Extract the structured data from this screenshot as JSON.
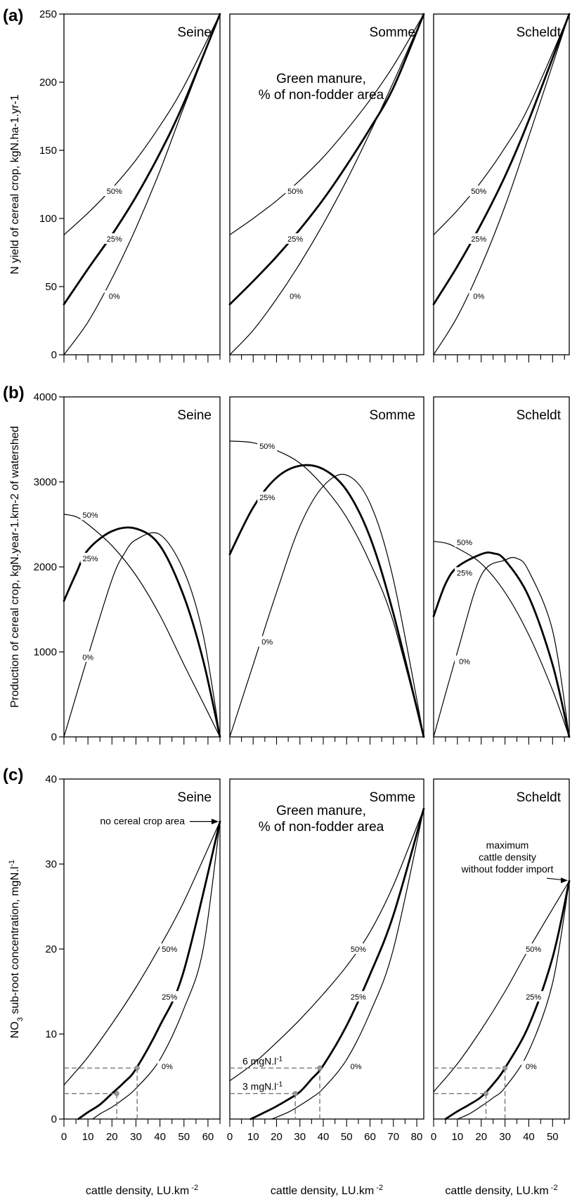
{
  "chart_data": {
    "type": "line",
    "basins": [
      {
        "name": "Seine",
        "x_max": 65,
        "x_ticks": [
          0,
          10,
          20,
          30,
          40,
          50,
          60
        ]
      },
      {
        "name": "Somme",
        "x_max": 83,
        "x_ticks": [
          0,
          10,
          20,
          30,
          40,
          50,
          60,
          70,
          80
        ]
      },
      {
        "name": "Scheldt",
        "x_max": 57,
        "x_ticks": [
          0,
          10,
          20,
          30,
          40,
          50
        ]
      }
    ],
    "xlabel": "cattle density, LU.km",
    "xlabel_sup": "-2",
    "panels": [
      {
        "label": "(a)",
        "ylabel": "N yield of cereal crop, kgN.ha",
        "ylabel_tail": "-1.yr-1",
        "ylim": [
          0,
          250
        ],
        "y_ticks": [
          0,
          50,
          100,
          150,
          200,
          250
        ],
        "annotation": [
          "Green manure,",
          "% of non-fodder area"
        ],
        "basins": [
          {
            "series": [
              {
                "name": "50%",
                "x": [
                  0,
                  10,
                  20,
                  30,
                  40,
                  50,
                  65
                ],
                "y": [
                  88,
                  104,
                  122,
                  143,
                  168,
                  197,
                  250
                ]
              },
              {
                "name": "25%",
                "x": [
                  0,
                  10,
                  20,
                  30,
                  40,
                  50,
                  65
                ],
                "y": [
                  37,
                  63,
                  88,
                  116,
                  148,
                  185,
                  250
                ]
              },
              {
                "name": "0%",
                "x": [
                  0,
                  10,
                  20,
                  30,
                  40,
                  50,
                  65
                ],
                "y": [
                  0,
                  24,
                  56,
                  93,
                  135,
                  182,
                  250
                ]
              }
            ]
          },
          {
            "series": [
              {
                "name": "50%",
                "x": [
                  0,
                  10,
                  20,
                  30,
                  40,
                  50,
                  60,
                  70,
                  83
                ],
                "y": [
                  88,
                  100,
                  113,
                  128,
                  145,
                  165,
                  187,
                  212,
                  250
                ]
              },
              {
                "name": "25%",
                "x": [
                  0,
                  10,
                  20,
                  30,
                  40,
                  50,
                  60,
                  70,
                  83
                ],
                "y": [
                  37,
                  54,
                  72,
                  92,
                  114,
                  139,
                  166,
                  196,
                  250
                ]
              },
              {
                "name": "0%",
                "x": [
                  0,
                  10,
                  20,
                  30,
                  40,
                  50,
                  60,
                  70,
                  83
                ],
                "y": [
                  0,
                  18,
                  41,
                  67,
                  96,
                  128,
                  163,
                  200,
                  250
                ]
              }
            ]
          },
          {
            "series": [
              {
                "name": "50%",
                "x": [
                  0,
                  10,
                  20,
                  30,
                  40,
                  57
                ],
                "y": [
                  88,
                  106,
                  127,
                  152,
                  182,
                  250
                ]
              },
              {
                "name": "25%",
                "x": [
                  0,
                  10,
                  20,
                  30,
                  40,
                  57
                ],
                "y": [
                  37,
                  65,
                  96,
                  131,
                  172,
                  250
                ]
              },
              {
                "name": "0%",
                "x": [
                  0,
                  10,
                  20,
                  30,
                  40,
                  57
                ],
                "y": [
                  0,
                  28,
                  65,
                  109,
                  160,
                  250
                ]
              }
            ]
          }
        ],
        "labels_at": [
          {
            "50%": [
              21,
              120
            ],
            "25%": [
              21,
              85
            ],
            "0%": [
              21,
              43
            ]
          },
          {
            "50%": [
              28,
              120
            ],
            "25%": [
              28,
              85
            ],
            "0%": [
              28,
              43
            ]
          },
          {
            "50%": [
              19,
              120
            ],
            "25%": [
              19,
              85
            ],
            "0%": [
              19,
              43
            ]
          }
        ]
      },
      {
        "label": "(b)",
        "ylabel": "Production of cereal crop, kgN.year",
        "ylabel_tail": "-1.km-2 of watershed",
        "ylim": [
          0,
          4000
        ],
        "y_ticks": [
          0,
          1000,
          2000,
          3000,
          4000
        ],
        "basins": [
          {
            "series": [
              {
                "name": "50%",
                "x": [
                  0,
                  5,
                  10,
                  20,
                  30,
                  40,
                  50,
                  58,
                  65
                ],
                "y": [
                  2620,
                  2590,
                  2500,
                  2250,
                  1900,
                  1430,
                  850,
                  400,
                  0
                ]
              },
              {
                "name": "25%",
                "x": [
                  0,
                  5,
                  10,
                  20,
                  30,
                  40,
                  50,
                  58,
                  65
                ],
                "y": [
                  1600,
                  1920,
                  2200,
                  2420,
                  2450,
                  2250,
                  1650,
                  900,
                  0
                ]
              },
              {
                "name": "0%",
                "x": [
                  0,
                  10,
                  20,
                  25,
                  30,
                  40,
                  50,
                  58,
                  65
                ],
                "y": [
                  0,
                  950,
                  1850,
                  2150,
                  2320,
                  2380,
                  1950,
                  1200,
                  0
                ]
              }
            ]
          },
          {
            "series": [
              {
                "name": "50%",
                "x": [
                  0,
                  10,
                  20,
                  30,
                  40,
                  50,
                  60,
                  70,
                  83
                ],
                "y": [
                  3480,
                  3460,
                  3370,
                  3220,
                  2950,
                  2580,
                  2050,
                  1350,
                  0
                ]
              },
              {
                "name": "25%",
                "x": [
                  0,
                  10,
                  20,
                  30,
                  40,
                  50,
                  60,
                  70,
                  83
                ],
                "y": [
                  2150,
                  2700,
                  3050,
                  3190,
                  3150,
                  2900,
                  2350,
                  1450,
                  0
                ]
              },
              {
                "name": "0%",
                "x": [
                  0,
                  10,
                  20,
                  30,
                  40,
                  50,
                  60,
                  70,
                  83
                ],
                "y": [
                  0,
                  850,
                  1700,
                  2480,
                  2950,
                  3080,
                  2750,
                  1850,
                  0
                ]
              }
            ]
          },
          {
            "series": [
              {
                "name": "50%",
                "x": [
                  0,
                  5,
                  10,
                  20,
                  30,
                  40,
                  50,
                  57
                ],
                "y": [
                  2300,
                  2280,
                  2220,
                  2040,
                  1700,
                  1200,
                  550,
                  0
                ]
              },
              {
                "name": "25%",
                "x": [
                  0,
                  5,
                  10,
                  20,
                  25,
                  30,
                  40,
                  50,
                  57
                ],
                "y": [
                  1420,
                  1800,
                  2000,
                  2150,
                  2160,
                  2080,
                  1650,
                  850,
                  0
                ]
              },
              {
                "name": "0%",
                "x": [
                  0,
                  10,
                  20,
                  30,
                  35,
                  40,
                  50,
                  57
                ],
                "y": [
                  0,
                  1000,
                  1900,
                  2080,
                  2100,
                  1950,
                  1250,
                  0
                ]
              }
            ]
          }
        ],
        "labels_at": [
          {
            "50%": [
              11,
              2610
            ],
            "25%": [
              11,
              2100
            ],
            "0%": [
              10,
              940
            ]
          },
          {
            "50%": [
              16,
              3420
            ],
            "25%": [
              16,
              2820
            ],
            "0%": [
              16,
              1120
            ]
          },
          {
            "50%": [
              13,
              2290
            ],
            "25%": [
              13,
              1930
            ],
            "0%": [
              13,
              890
            ]
          }
        ]
      },
      {
        "label": "(c)",
        "ylabel": "NO",
        "ylabel_sub": "3",
        "ylabel_tail": " sub-root concentration, mgN.l",
        "ylabel_sup": "-1",
        "ylim": [
          0,
          40
        ],
        "y_ticks": [
          0,
          10,
          20,
          30,
          40
        ],
        "annotation": [
          "Green manure,",
          "% of non-fodder area"
        ],
        "endpoint_label": "no cereal crop area",
        "maxdens_label": [
          "maximum",
          "cattle density",
          "without fodder import"
        ],
        "ref_labels": [
          "6 mgN.l",
          "3 mgN.l"
        ],
        "ref_sup": "-1",
        "basins": [
          {
            "series": [
              {
                "name": "50%",
                "x": [
                  0,
                  10,
                  20,
                  30,
                  40,
                  50,
                  65
                ],
                "y": [
                  4,
                  7.3,
                  11.2,
                  15.5,
                  20.3,
                  25.6,
                  35
                ]
              },
              {
                "name": "25%",
                "x": [
                  6,
                  10,
                  15,
                  20,
                  25,
                  30,
                  40,
                  50,
                  65
                ],
                "y": [
                  0,
                  0.8,
                  1.7,
                  3,
                  4.3,
                  5.9,
                  11,
                  17.5,
                  35
                ]
              },
              {
                "name": "0%",
                "x": [
                  12,
                  15,
                  20,
                  25,
                  30,
                  40,
                  50,
                  58,
                  65
                ],
                "y": [
                  0,
                  0.6,
                  1.4,
                  2.4,
                  3.6,
                  7,
                  13,
                  20,
                  35
                ]
              }
            ],
            "ref": {
              "x6": 30.5,
              "x3": 22
            }
          },
          {
            "series": [
              {
                "name": "50%",
                "x": [
                  0,
                  10,
                  20,
                  30,
                  40,
                  50,
                  60,
                  70,
                  83
                ],
                "y": [
                  4.5,
                  6.5,
                  9,
                  11.7,
                  14.7,
                  18,
                  22,
                  27.5,
                  36.5
                ]
              },
              {
                "name": "25%",
                "x": [
                  9,
                  15,
                  20,
                  25,
                  30,
                  35,
                  40,
                  50,
                  60,
                  70,
                  83
                ],
                "y": [
                  0,
                  0.8,
                  1.5,
                  2.3,
                  3.2,
                  4.7,
                  6.3,
                  11,
                  17,
                  24,
                  36.5
                ]
              },
              {
                "name": "0%",
                "x": [
                  18,
                  25,
                  30,
                  35,
                  40,
                  50,
                  60,
                  70,
                  83
                ],
                "y": [
                  0,
                  0.8,
                  1.6,
                  2.5,
                  3.6,
                  7,
                  12.5,
                  20,
                  36.5
                ]
              }
            ],
            "ref": {
              "x6": 38.5,
              "x3": 28
            }
          },
          {
            "series": [
              {
                "name": "50%",
                "x": [
                  0,
                  10,
                  20,
                  30,
                  40,
                  57
                ],
                "y": [
                  3.2,
                  6.5,
                  10.5,
                  15,
                  20,
                  28
                ]
              },
              {
                "name": "25%",
                "x": [
                  5,
                  10,
                  15,
                  20,
                  25,
                  30,
                  40,
                  50,
                  57
                ],
                "y": [
                  0,
                  0.9,
                  1.7,
                  2.6,
                  4.1,
                  6,
                  11,
                  19,
                  28
                ]
              },
              {
                "name": "0%",
                "x": [
                  10,
                  15,
                  20,
                  25,
                  30,
                  40,
                  50,
                  57
                ],
                "y": [
                  0,
                  0.6,
                  1.5,
                  2.5,
                  3.7,
                  8,
                  16,
                  28
                ]
              }
            ],
            "ref": {
              "x6": 30,
              "x3": 22
            }
          }
        ],
        "labels_at": [
          {
            "50%": [
              44,
              20
            ],
            "25%": [
              44,
              14.4
            ],
            "0%": [
              43,
              6.2
            ]
          },
          {
            "50%": [
              55,
              20
            ],
            "25%": [
              55,
              14.4
            ],
            "0%": [
              54,
              6.2
            ]
          },
          {
            "50%": [
              42,
              20
            ],
            "25%": [
              42,
              14.4
            ],
            "0%": [
              41,
              6.2
            ]
          }
        ]
      }
    ]
  }
}
